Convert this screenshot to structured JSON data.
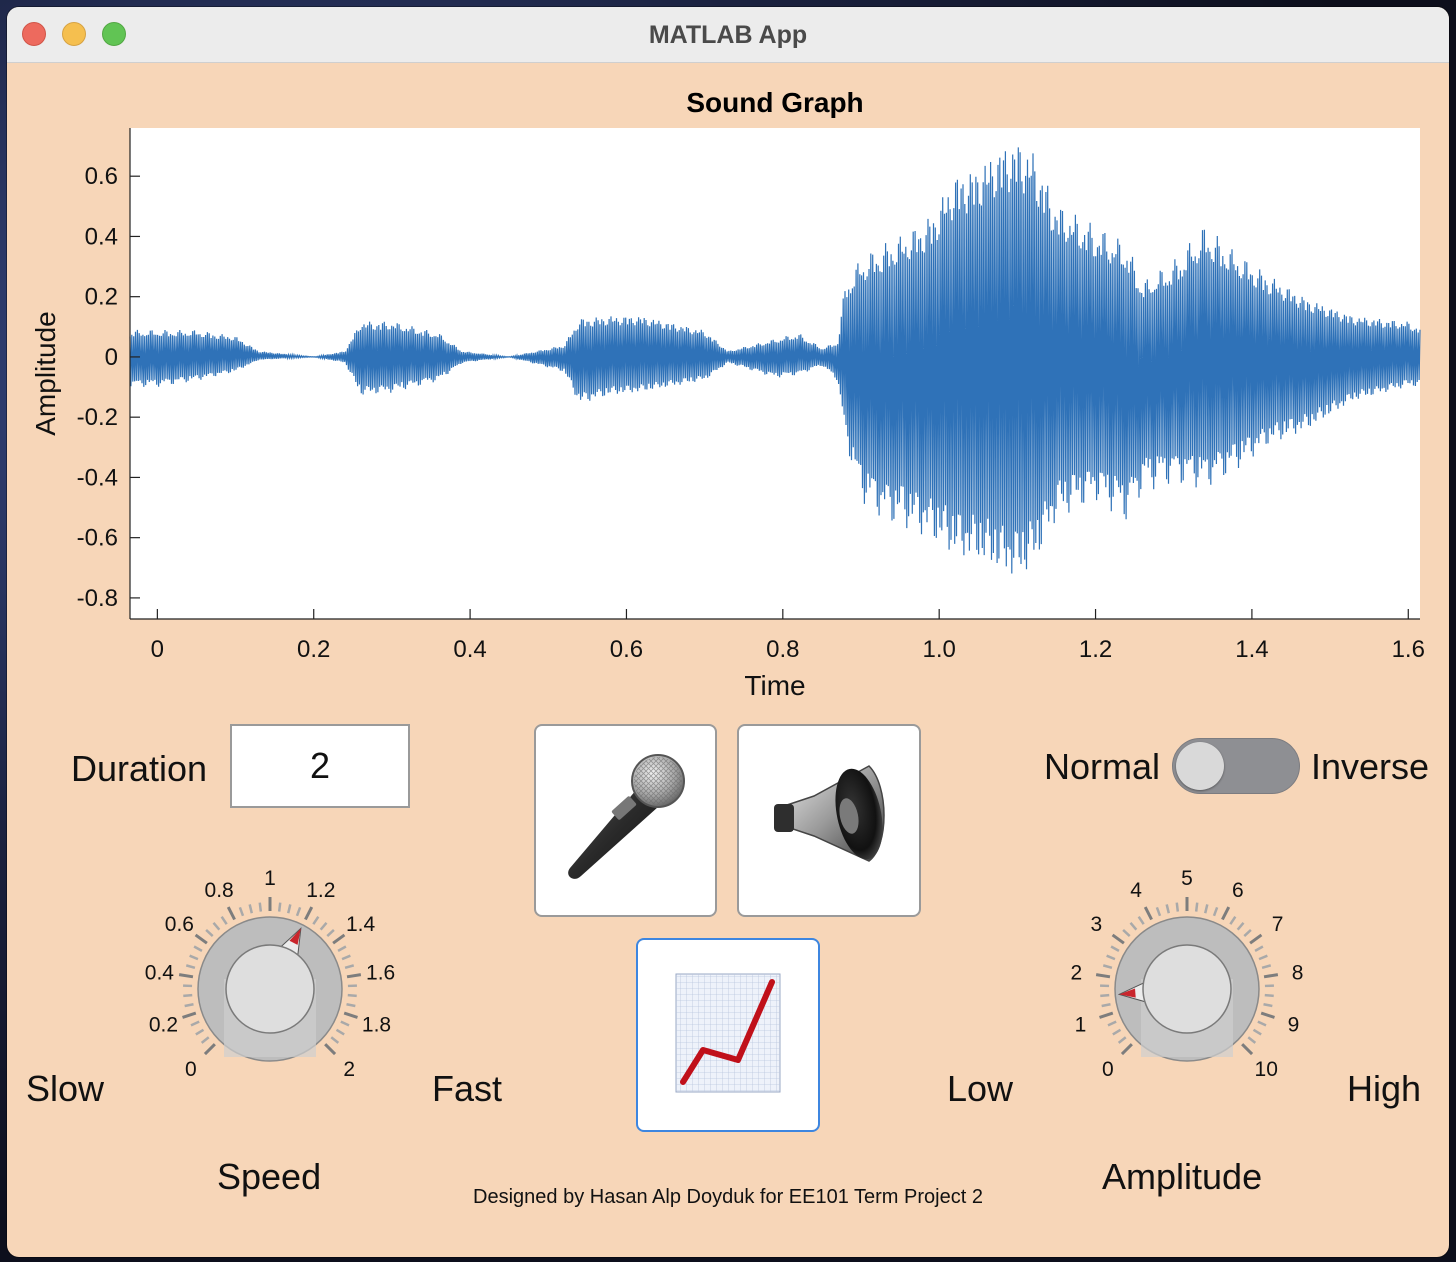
{
  "window": {
    "title": "MATLAB App"
  },
  "chart_data": {
    "type": "line",
    "title": "Sound Graph",
    "xlabel": "Time",
    "ylabel": "Amplitude",
    "xlim": [
      -0.035,
      1.615
    ],
    "ylim": [
      -0.87,
      0.76
    ],
    "x_ticks": [
      "0",
      "0.2",
      "0.4",
      "0.6",
      "0.8",
      "1.0",
      "1.2",
      "1.4",
      "1.6"
    ],
    "x_tick_values": [
      0,
      0.2,
      0.4,
      0.6,
      0.8,
      1.0,
      1.2,
      1.4,
      1.6
    ],
    "y_ticks": [
      "0.6",
      "0.4",
      "0.2",
      "0",
      "-0.2",
      "-0.4",
      "-0.6",
      "-0.8"
    ],
    "y_tick_values": [
      0.6,
      0.4,
      0.2,
      0,
      -0.2,
      -0.4,
      -0.6,
      -0.8
    ],
    "series": [
      {
        "color": "#2f72b8",
        "envelope_x": [
          -0.035,
          0.0,
          0.05,
          0.1,
          0.13,
          0.2,
          0.24,
          0.26,
          0.3,
          0.36,
          0.39,
          0.45,
          0.52,
          0.54,
          0.58,
          0.62,
          0.7,
          0.73,
          0.79,
          0.82,
          0.85,
          0.87,
          0.88,
          0.9,
          0.93,
          0.96,
          0.99,
          1.02,
          1.05,
          1.08,
          1.1,
          1.12,
          1.15,
          1.2,
          1.24,
          1.26,
          1.3,
          1.34,
          1.38,
          1.42,
          1.47,
          1.53,
          1.6,
          1.615
        ],
        "envelope_upper": [
          0.09,
          0.09,
          0.09,
          0.07,
          0.02,
          0.0,
          0.02,
          0.12,
          0.12,
          0.08,
          0.02,
          0.0,
          0.04,
          0.13,
          0.14,
          0.14,
          0.09,
          0.02,
          0.06,
          0.08,
          0.03,
          0.05,
          0.25,
          0.33,
          0.38,
          0.42,
          0.48,
          0.62,
          0.65,
          0.72,
          0.74,
          0.7,
          0.52,
          0.44,
          0.38,
          0.25,
          0.32,
          0.44,
          0.35,
          0.28,
          0.2,
          0.14,
          0.12,
          0.1
        ],
        "envelope_lower": [
          -0.1,
          -0.1,
          -0.08,
          -0.05,
          -0.01,
          0.0,
          -0.02,
          -0.13,
          -0.12,
          -0.08,
          -0.02,
          0.0,
          -0.05,
          -0.16,
          -0.13,
          -0.12,
          -0.08,
          -0.02,
          -0.07,
          -0.06,
          -0.03,
          -0.08,
          -0.28,
          -0.48,
          -0.55,
          -0.58,
          -0.62,
          -0.68,
          -0.7,
          -0.74,
          -0.76,
          -0.72,
          -0.55,
          -0.48,
          -0.55,
          -0.45,
          -0.42,
          -0.44,
          -0.38,
          -0.3,
          -0.25,
          -0.15,
          -0.1,
          -0.1
        ]
      }
    ]
  },
  "controls": {
    "duration_label": "Duration",
    "duration_value": "2",
    "mode_left": "Normal",
    "mode_right": "Inverse",
    "mode_is_inverse": false,
    "speed": {
      "title": "Speed",
      "left": "Slow",
      "right": "Fast",
      "value": 1.2,
      "scale": [
        "0",
        "0.2",
        "0.4",
        "0.6",
        "0.8",
        "1",
        "1.2",
        "1.4",
        "1.6",
        "1.8",
        "2"
      ]
    },
    "amplitude": {
      "title": "Amplitude",
      "left": "Low",
      "right": "High",
      "value": 1.5,
      "scale": [
        "0",
        "1",
        "2",
        "3",
        "4",
        "5",
        "6",
        "7",
        "8",
        "9",
        "10"
      ]
    },
    "buttons": [
      "microphone-icon",
      "speaker-icon",
      "chart-icon"
    ]
  },
  "footer": "Designed by Hasan Alp Doyduk for EE101 Term Project 2"
}
